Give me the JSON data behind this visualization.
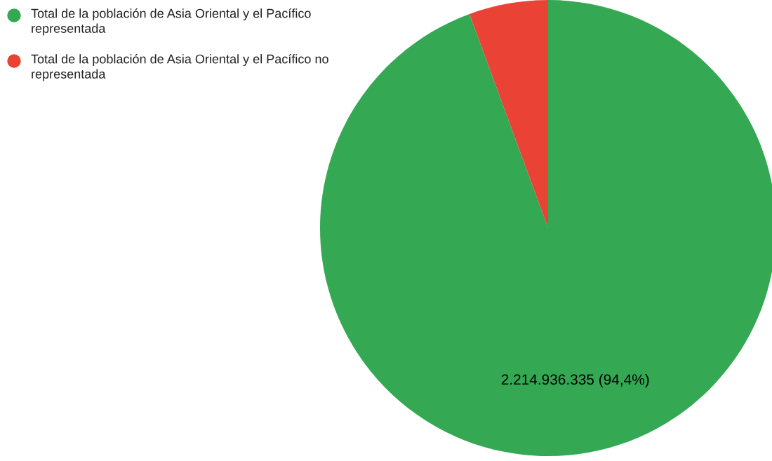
{
  "chart_data": {
    "type": "pie",
    "categories": [
      "Total de la población de Asia Oriental y el Pacífico representada",
      "Total de la población de Asia Oriental y el Pacífico no representada"
    ],
    "values": [
      94.4,
      5.6
    ],
    "colors": [
      "#34a853",
      "#ea4335"
    ],
    "value_labels": [
      "2.214.936.335 (94,4%)",
      null
    ],
    "legend": "top left"
  }
}
